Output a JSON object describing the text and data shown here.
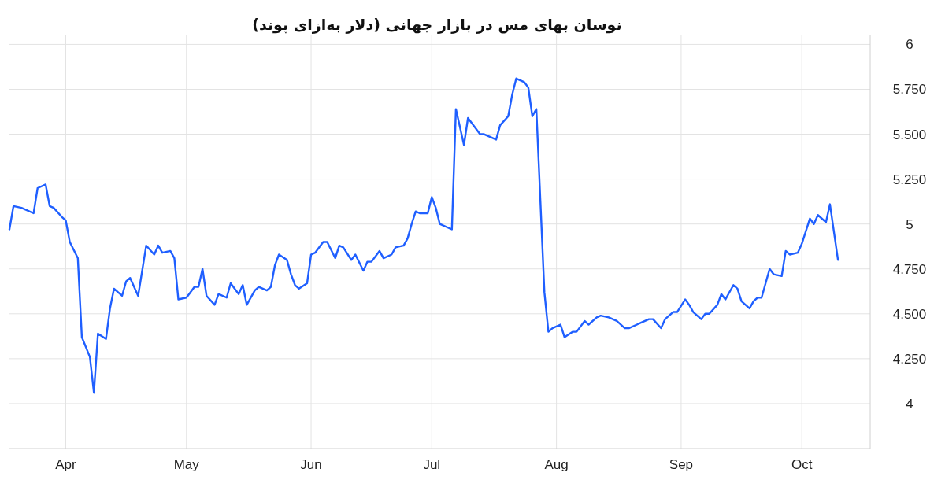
{
  "chart_data": {
    "type": "line",
    "title": "نوسان بهای مس در بازار جهانی (دلار به‌ازای پوند)",
    "x": [
      "--03-18",
      "--03-19",
      "--03-21",
      "--03-22",
      "--03-24",
      "--03-25",
      "--03-27",
      "--03-28",
      "--03-29",
      "--03-31",
      "--04-01",
      "--04-02",
      "--04-04",
      "--04-05",
      "--04-07",
      "--04-08",
      "--04-09",
      "--04-11",
      "--04-12",
      "--04-13",
      "--04-15",
      "--04-16",
      "--04-17",
      "--04-19",
      "--04-21",
      "--04-23",
      "--04-24",
      "--04-25",
      "--04-27",
      "--04-28",
      "--04-29",
      "--05-01",
      "--05-02",
      "--05-03",
      "--05-04",
      "--05-05",
      "--05-06",
      "--05-08",
      "--05-09",
      "--05-11",
      "--05-12",
      "--05-14",
      "--05-15",
      "--05-16",
      "--05-18",
      "--05-19",
      "--05-21",
      "--05-22",
      "--05-23",
      "--05-24",
      "--05-26",
      "--05-27",
      "--05-28",
      "--05-29",
      "--05-31",
      "--06-01",
      "--06-02",
      "--06-04",
      "--06-05",
      "--06-07",
      "--06-08",
      "--06-09",
      "--06-11",
      "--06-12",
      "--06-14",
      "--06-15",
      "--06-16",
      "--06-18",
      "--06-19",
      "--06-21",
      "--06-22",
      "--06-24",
      "--06-25",
      "--06-26",
      "--06-27",
      "--06-28",
      "--06-30",
      "--07-01",
      "--07-02",
      "--07-03",
      "--07-06",
      "--07-07",
      "--07-09",
      "--07-10",
      "--07-13",
      "--07-14",
      "--07-17",
      "--07-18",
      "--07-20",
      "--07-21",
      "--07-22",
      "--07-24",
      "--07-25",
      "--07-26",
      "--07-27",
      "--07-29",
      "--07-30",
      "--07-31",
      "--08-02",
      "--08-03",
      "--08-05",
      "--08-06",
      "--08-08",
      "--08-09",
      "--08-11",
      "--08-12",
      "--08-14",
      "--08-15",
      "--08-16",
      "--08-18",
      "--08-19",
      "--08-21",
      "--08-22",
      "--08-24",
      "--08-25",
      "--08-27",
      "--08-28",
      "--08-30",
      "--08-31",
      "--09-02",
      "--09-03",
      "--09-04",
      "--09-06",
      "--09-07",
      "--09-08",
      "--09-10",
      "--09-11",
      "--09-12",
      "--09-14",
      "--09-15",
      "--09-16",
      "--09-18",
      "--09-19",
      "--09-20",
      "--09-21",
      "--09-23",
      "--09-24",
      "--09-26",
      "--09-27",
      "--09-28",
      "--09-30",
      "--10-01",
      "--10-03",
      "--10-04",
      "--10-05",
      "--10-07",
      "--10-08",
      "--10-10"
    ],
    "series": [
      {
        "color": "#1f5fff",
        "values": [
          4.97,
          5.1,
          5.09,
          5.08,
          5.06,
          5.2,
          5.22,
          5.1,
          5.09,
          5.04,
          5.02,
          4.9,
          4.81,
          4.37,
          4.26,
          4.06,
          4.39,
          4.36,
          4.53,
          4.64,
          4.6,
          4.68,
          4.7,
          4.6,
          4.88,
          4.83,
          4.88,
          4.84,
          4.85,
          4.81,
          4.58,
          4.59,
          4.62,
          4.65,
          4.65,
          4.75,
          4.6,
          4.55,
          4.61,
          4.59,
          4.67,
          4.61,
          4.66,
          4.55,
          4.63,
          4.65,
          4.63,
          4.65,
          4.77,
          4.83,
          4.8,
          4.72,
          4.66,
          4.64,
          4.67,
          4.83,
          4.84,
          4.9,
          4.9,
          4.81,
          4.88,
          4.87,
          4.8,
          4.83,
          4.74,
          4.79,
          4.79,
          4.85,
          4.81,
          4.83,
          4.87,
          4.88,
          4.92,
          5.0,
          5.07,
          5.06,
          5.06,
          5.15,
          5.09,
          5.0,
          4.97,
          5.64,
          5.44,
          5.59,
          5.5,
          5.5,
          5.47,
          5.55,
          5.6,
          5.72,
          5.81,
          5.79,
          5.76,
          5.6,
          5.64,
          4.62,
          4.4,
          4.42,
          4.44,
          4.37,
          4.4,
          4.4,
          4.46,
          4.44,
          4.48,
          4.49,
          4.48,
          4.47,
          4.46,
          4.42,
          4.42,
          4.44,
          4.45,
          4.47,
          4.47,
          4.42,
          4.47,
          4.51,
          4.51,
          4.58,
          4.55,
          4.51,
          4.47,
          4.5,
          4.5,
          4.55,
          4.61,
          4.58,
          4.66,
          4.64,
          4.57,
          4.53,
          4.57,
          4.59,
          4.59,
          4.75,
          4.72,
          4.71,
          4.85,
          4.83,
          4.84,
          4.89,
          5.03,
          5.0,
          5.05,
          5.01,
          5.11,
          4.8
        ]
      }
    ],
    "xlim": [
      "--03-18",
      "--10-18"
    ],
    "xticks": [
      {
        "value": "--04-01",
        "label": "Apr"
      },
      {
        "value": "--05-01",
        "label": "May"
      },
      {
        "value": "--06-01",
        "label": "Jun"
      },
      {
        "value": "--07-01",
        "label": "Jul"
      },
      {
        "value": "--08-01",
        "label": "Aug"
      },
      {
        "value": "--09-01",
        "label": "Sep"
      },
      {
        "value": "--10-01",
        "label": "Oct"
      }
    ],
    "ylim": [
      3.75,
      6.05
    ],
    "yticks": [
      4,
      {
        "value": 4.25,
        "label": "4.250"
      },
      {
        "value": 4.5,
        "label": "4.500"
      },
      {
        "value": 4.75,
        "label": "4.750"
      },
      5,
      {
        "value": 5.25,
        "label": "5.250"
      },
      {
        "value": 5.5,
        "label": "5.500"
      },
      {
        "value": 5.75,
        "label": "5.750"
      },
      6
    ],
    "grid": true
  }
}
